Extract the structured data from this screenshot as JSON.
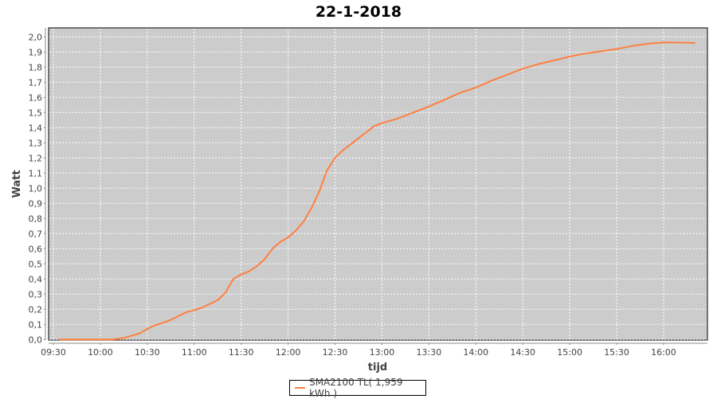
{
  "chart_data": {
    "type": "line",
    "title": "22-1-2018",
    "xlabel": "tijd",
    "ylabel": "Watt",
    "ylim": [
      0,
      2.0
    ],
    "xlim": [
      "09:27",
      "16:31"
    ],
    "yticks": [
      "0,0",
      "0,1",
      "0,2",
      "0,3",
      "0,4",
      "0,5",
      "0,6",
      "0,7",
      "0,8",
      "0,9",
      "1,0",
      "1,1",
      "1,2",
      "1,3",
      "1,4",
      "1,5",
      "1,6",
      "1,7",
      "1,8",
      "1,9",
      "2,0"
    ],
    "xticks": [
      "09:30",
      "10:00",
      "10:30",
      "11:00",
      "11:30",
      "12:00",
      "12:30",
      "13:00",
      "13:30",
      "14:00",
      "14:30",
      "15:00",
      "15:30",
      "16:00"
    ],
    "grid": true,
    "legend_position": "bottom",
    "series": [
      {
        "name": "SMA2100 TL( 1,959 kWh )",
        "color": "#ff7f3f",
        "x": [
          "09:34",
          "10:08",
          "10:15",
          "10:20",
          "10:25",
          "10:30",
          "10:35",
          "10:40",
          "10:45",
          "10:50",
          "10:55",
          "11:00",
          "11:05",
          "11:10",
          "11:15",
          "11:20",
          "11:25",
          "11:30",
          "11:35",
          "11:40",
          "11:45",
          "11:50",
          "11:55",
          "12:00",
          "12:05",
          "12:10",
          "12:15",
          "12:20",
          "12:25",
          "12:30",
          "12:35",
          "12:40",
          "12:45",
          "12:50",
          "12:55",
          "13:00",
          "13:10",
          "13:20",
          "13:30",
          "13:40",
          "13:50",
          "14:00",
          "14:10",
          "14:20",
          "14:30",
          "14:40",
          "14:50",
          "15:00",
          "15:10",
          "15:20",
          "15:30",
          "15:40",
          "15:50",
          "16:00",
          "16:10",
          "16:20"
        ],
        "y": [
          0,
          0,
          0.01,
          0.025,
          0.04,
          0.07,
          0.095,
          0.11,
          0.13,
          0.155,
          0.18,
          0.195,
          0.21,
          0.235,
          0.26,
          0.31,
          0.4,
          0.43,
          0.45,
          0.485,
          0.53,
          0.6,
          0.645,
          0.675,
          0.72,
          0.78,
          0.87,
          0.98,
          1.12,
          1.2,
          1.25,
          1.29,
          1.33,
          1.37,
          1.41,
          1.43,
          1.46,
          1.5,
          1.54,
          1.585,
          1.63,
          1.665,
          1.71,
          1.75,
          1.79,
          1.82,
          1.845,
          1.87,
          1.89,
          1.905,
          1.92,
          1.94,
          1.955,
          1.963,
          1.962,
          1.96
        ]
      }
    ]
  }
}
